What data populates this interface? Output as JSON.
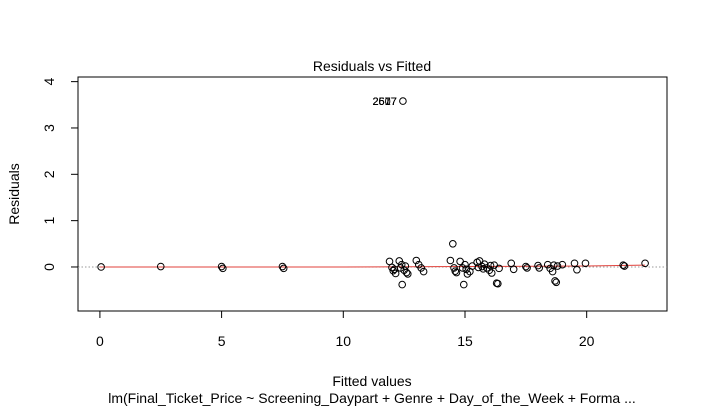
{
  "chart_data": {
    "type": "scatter",
    "title": "Residuals vs Fitted",
    "xlabel": "Fitted values",
    "ylabel": "Residuals",
    "subtitle": "lm(Final_Ticket_Price ~ Screening_Daypart + Genre + Day_of_the_Week + Forma ...",
    "xlim": [
      -0.9,
      23.3
    ],
    "ylim": [
      -0.95,
      4.1
    ],
    "x_ticks": [
      0,
      5,
      10,
      15,
      20
    ],
    "y_ticks": [
      0,
      1,
      2,
      3,
      4
    ],
    "grid": false,
    "reference_line": {
      "y": 0,
      "color": "#999999",
      "style": "dotted"
    },
    "smoother_color": "#e0413b",
    "point_color": "#000000",
    "outlier_label": "2607",
    "outlier_label_overprints": [
      "2607",
      "2577",
      "2617"
    ],
    "outlier_point": {
      "x": 12.45,
      "y": 3.58
    },
    "smoother": [
      [
        0,
        0
      ],
      [
        5,
        0
      ],
      [
        10,
        0
      ],
      [
        15,
        0.01
      ],
      [
        20,
        0.02
      ],
      [
        22.4,
        0.04
      ]
    ],
    "points": [
      [
        0.05,
        0.0
      ],
      [
        2.5,
        0.01
      ],
      [
        5.0,
        0.01
      ],
      [
        5.05,
        -0.03
      ],
      [
        7.5,
        0.01
      ],
      [
        7.55,
        -0.03
      ],
      [
        11.9,
        0.12
      ],
      [
        12.0,
        -0.01
      ],
      [
        12.05,
        -0.08
      ],
      [
        12.1,
        -0.05
      ],
      [
        12.15,
        -0.14
      ],
      [
        12.3,
        0.13
      ],
      [
        12.35,
        -0.02
      ],
      [
        12.4,
        0.05
      ],
      [
        12.42,
        -0.38
      ],
      [
        12.5,
        -0.07
      ],
      [
        12.55,
        0.02
      ],
      [
        12.6,
        -0.12
      ],
      [
        12.65,
        -0.15
      ],
      [
        13.0,
        0.14
      ],
      [
        13.1,
        0.05
      ],
      [
        13.2,
        -0.02
      ],
      [
        13.3,
        -0.1
      ],
      [
        14.4,
        0.14
      ],
      [
        14.5,
        0.5
      ],
      [
        14.55,
        -0.02
      ],
      [
        14.6,
        -0.09
      ],
      [
        14.65,
        -0.12
      ],
      [
        14.8,
        0.12
      ],
      [
        14.9,
        -0.02
      ],
      [
        14.95,
        -0.38
      ],
      [
        15.0,
        0.05
      ],
      [
        15.05,
        -0.05
      ],
      [
        15.1,
        -0.15
      ],
      [
        15.2,
        -0.1
      ],
      [
        15.3,
        0.02
      ],
      [
        15.5,
        0.1
      ],
      [
        15.55,
        -0.01
      ],
      [
        15.6,
        0.13
      ],
      [
        15.7,
        0.01
      ],
      [
        15.75,
        -0.04
      ],
      [
        15.8,
        0.06
      ],
      [
        15.9,
        -0.02
      ],
      [
        16.0,
        -0.07
      ],
      [
        16.05,
        0.03
      ],
      [
        16.1,
        -0.13
      ],
      [
        16.2,
        0.04
      ],
      [
        16.3,
        -0.35
      ],
      [
        16.35,
        -0.36
      ],
      [
        16.4,
        -0.03
      ],
      [
        16.9,
        0.08
      ],
      [
        17.0,
        -0.05
      ],
      [
        17.5,
        0.01
      ],
      [
        17.55,
        -0.02
      ],
      [
        18.0,
        0.03
      ],
      [
        18.05,
        -0.02
      ],
      [
        18.4,
        0.05
      ],
      [
        18.5,
        -0.03
      ],
      [
        18.6,
        -0.1
      ],
      [
        18.65,
        0.04
      ],
      [
        18.7,
        -0.3
      ],
      [
        18.75,
        -0.33
      ],
      [
        18.8,
        0.02
      ],
      [
        19.0,
        0.05
      ],
      [
        19.5,
        0.08
      ],
      [
        19.6,
        -0.06
      ],
      [
        19.95,
        0.08
      ],
      [
        21.5,
        0.04
      ],
      [
        21.55,
        0.02
      ],
      [
        22.4,
        0.08
      ]
    ]
  }
}
